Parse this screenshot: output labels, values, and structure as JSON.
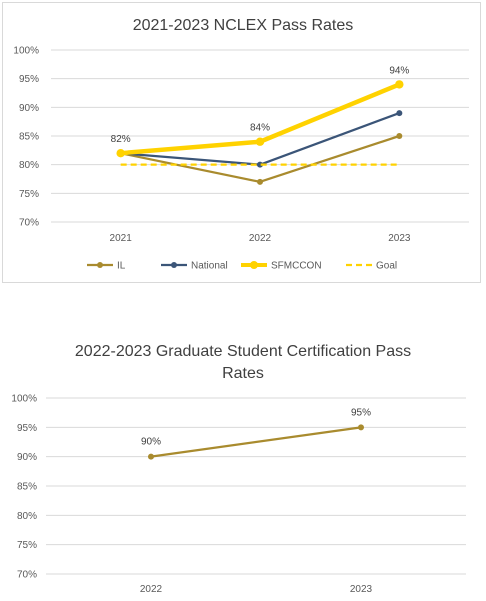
{
  "chart_data": [
    {
      "type": "line",
      "title": "2021-2023 NCLEX Pass Rates",
      "categories": [
        "2021",
        "2022",
        "2023"
      ],
      "ylim": [
        70,
        100
      ],
      "ystep": 5,
      "ytick_labels": [
        "70%",
        "75%",
        "80%",
        "85%",
        "90%",
        "95%",
        "100%"
      ],
      "grid": true,
      "legend": "bottom",
      "series": [
        {
          "name": "IL",
          "values": [
            82,
            77,
            85
          ],
          "color": "#A98B2E",
          "style": "solid-marker"
        },
        {
          "name": "National",
          "values": [
            82,
            80,
            89
          ],
          "color": "#3B5578",
          "style": "solid-marker"
        },
        {
          "name": "SFMCCON",
          "values": [
            82,
            84,
            94
          ],
          "color": "#FFD200",
          "style": "thick-marker",
          "data_labels": [
            "82%",
            "84%",
            "94%"
          ]
        },
        {
          "name": "Goal",
          "values": [
            80,
            80,
            80
          ],
          "color": "#FFD200",
          "style": "dashed"
        }
      ]
    },
    {
      "type": "line",
      "title": "2022-2023 Graduate Student Certification Pass Rates",
      "title_lines": [
        "2022-2023 Graduate Student Certification Pass",
        "Rates"
      ],
      "categories": [
        "2022",
        "2023"
      ],
      "ylim": [
        70,
        100
      ],
      "ystep": 5,
      "ytick_labels": [
        "70%",
        "75%",
        "80%",
        "85%",
        "90%",
        "95%",
        "100%"
      ],
      "grid": true,
      "series": [
        {
          "values": [
            90,
            95
          ],
          "color": "#A98B2E",
          "style": "solid-marker",
          "data_labels": [
            "90%",
            "95%"
          ]
        }
      ]
    }
  ]
}
